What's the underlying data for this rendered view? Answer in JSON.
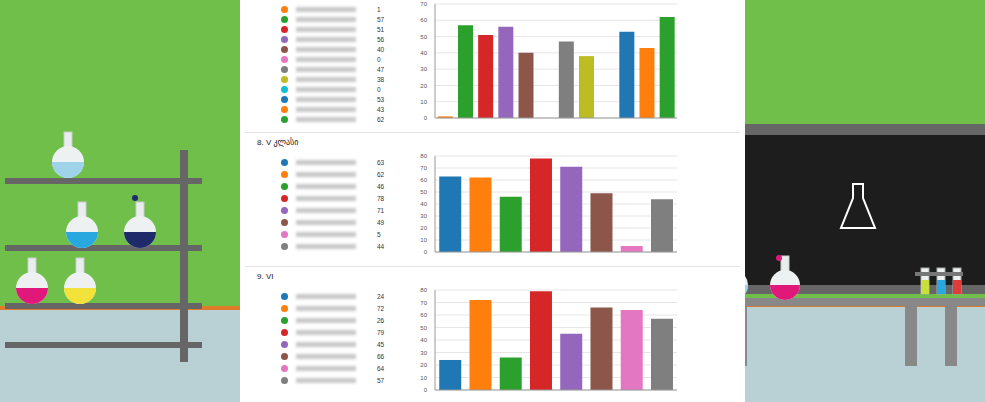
{
  "chart_data": [
    {
      "type": "bar",
      "categories": [
        null,
        null,
        null,
        null,
        null,
        null,
        null,
        null,
        null,
        null,
        null,
        null
      ],
      "values": [
        1,
        57,
        51,
        56,
        40,
        0,
        47,
        38,
        0,
        53,
        43,
        62
      ],
      "colors": [
        "#ff7f0e",
        "#2ca02c",
        "#d62728",
        "#9467bd",
        "#8c564b",
        "#e377c2",
        "#7f7f7f",
        "#bcbd22",
        "#17becf",
        "#1f77b4",
        "#ff7f0e",
        "#2ca02c"
      ],
      "ylim": [
        0,
        70
      ],
      "yticks": [
        0,
        10,
        20,
        30,
        40,
        50,
        60,
        70
      ],
      "grid": true,
      "legend": "left",
      "tick_labels": "y"
    },
    {
      "type": "bar",
      "title": "8. V კლასი",
      "categories": [
        null,
        null,
        null,
        null,
        null,
        null,
        null,
        null
      ],
      "values": [
        63,
        62,
        46,
        78,
        71,
        49,
        5,
        44
      ],
      "colors": [
        "#1f77b4",
        "#ff7f0e",
        "#2ca02c",
        "#d62728",
        "#9467bd",
        "#8c564b",
        "#e377c2",
        "#7f7f7f"
      ],
      "ylim": [
        0,
        80
      ],
      "yticks": [
        0,
        10,
        20,
        30,
        40,
        50,
        60,
        70,
        80
      ],
      "grid": true,
      "legend": "left",
      "tick_labels": "y"
    },
    {
      "type": "bar",
      "title": "9. VI",
      "categories": [
        null,
        null,
        null,
        null,
        null,
        null,
        null,
        null
      ],
      "values": [
        24,
        72,
        26,
        79,
        45,
        66,
        64,
        57
      ],
      "colors": [
        "#1f77b4",
        "#ff7f0e",
        "#2ca02c",
        "#d62728",
        "#9467bd",
        "#8c564b",
        "#e377c2",
        "#7f7f7f"
      ],
      "ylim": [
        0,
        80
      ],
      "yticks": [
        0,
        10,
        20,
        30,
        40,
        50,
        60,
        70,
        80
      ],
      "grid": true,
      "legend": "left",
      "tick_labels": "y"
    }
  ]
}
